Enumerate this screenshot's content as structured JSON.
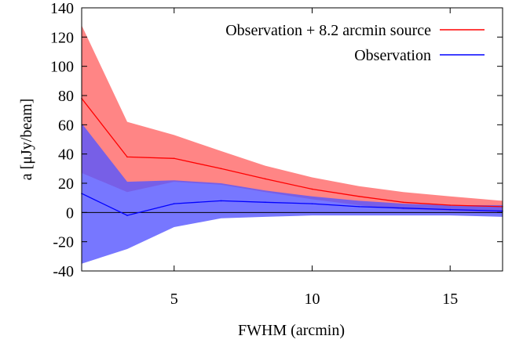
{
  "chart_data": {
    "type": "area",
    "xlabel": "FWHM (arcmin)",
    "ylabel": "a [μJy/beam]",
    "xlim": [
      1.65,
      16.9
    ],
    "ylim": [
      -40,
      140
    ],
    "xticks": [
      5,
      10,
      15
    ],
    "yticks": [
      -40,
      -20,
      0,
      20,
      40,
      60,
      80,
      100,
      120,
      140
    ],
    "legend_position": "top-right",
    "zero_line": true,
    "series": [
      {
        "name": "Observation + 8.2 arcmin source",
        "line_color": "#ff0000",
        "band_color": "#ff6666",
        "x": [
          1.65,
          3.3,
          5.0,
          6.7,
          8.3,
          10.0,
          11.7,
          13.3,
          15.0,
          16.9
        ],
        "y": [
          78,
          38,
          37,
          30,
          23,
          16,
          11,
          7,
          5,
          4
        ],
        "upper": [
          128,
          62,
          53,
          42,
          32,
          24,
          18,
          14,
          11,
          8
        ],
        "lower": [
          27,
          14,
          21,
          19,
          14,
          9,
          5,
          2,
          1,
          0
        ]
      },
      {
        "name": "Observation",
        "line_color": "#0000ff",
        "band_color": "#5555ff",
        "x": [
          1.65,
          3.3,
          5.0,
          6.7,
          8.3,
          10.0,
          11.7,
          13.3,
          15.0,
          16.9
        ],
        "y": [
          13,
          -2,
          6,
          8,
          7,
          6,
          4,
          3,
          2,
          1
        ],
        "upper": [
          61,
          21,
          22,
          20,
          15,
          11,
          8,
          6,
          5,
          5
        ],
        "lower": [
          -35,
          -25,
          -10,
          -4,
          -3,
          -2,
          -2,
          -2,
          -2,
          -3
        ]
      }
    ]
  }
}
